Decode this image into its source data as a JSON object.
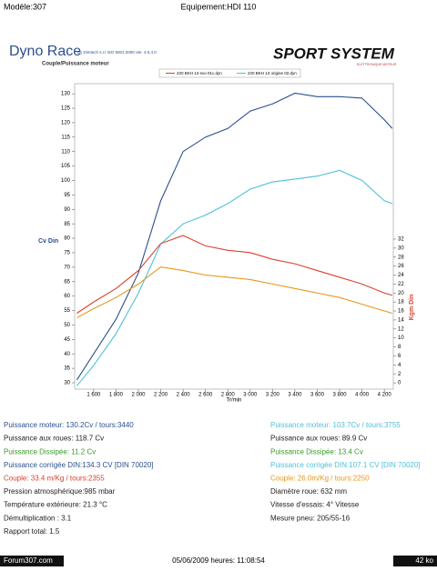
{
  "header": {
    "model": "Modèle:307",
    "equipment": "Equipement:HDI 110"
  },
  "brand": {
    "title": "Dyno Race",
    "by": "By Dimtech s.r.l  ISO 9001:2000  Ver. 4.0.4.0",
    "logo": "SPORT SYSTEM",
    "logo_sub": "ELETTRONIQUE MOTEUR"
  },
  "chart_data": {
    "type": "line",
    "subtitle": "Couple/Puissance moteur",
    "y_label": "Cv Din",
    "y2_label": "Kgm Din",
    "x_label": "Tr/min",
    "legend": [
      {
        "label": "220 BKH 13 evo 01c.dyn",
        "color": "#d9412e"
      },
      {
        "label": "220 BKH 13 origine 02.dyn",
        "color": "#4fc0d8"
      }
    ],
    "x": [
      1450,
      1600,
      1800,
      2000,
      2200,
      2400,
      2600,
      2800,
      3000,
      3200,
      3400,
      3600,
      3800,
      4000,
      4200,
      4270
    ],
    "series": [
      {
        "color": "#2b4f8e",
        "values": [
          31,
          40,
          52,
          68,
          93,
          110,
          115,
          118,
          124,
          126.5,
          130.2,
          129,
          129,
          128.5,
          121,
          118
        ]
      },
      {
        "color": "#4fc0d8",
        "values": [
          29,
          36,
          47,
          61,
          78,
          85,
          88,
          92,
          97,
          99.5,
          100.5,
          101.5,
          103.5,
          100,
          93,
          92
        ]
      },
      {
        "color": "#d9412e",
        "axis": "y2",
        "values": [
          15.5,
          18,
          21,
          25,
          31,
          32.8,
          30.5,
          29.5,
          29,
          27.5,
          26.5,
          25,
          23.5,
          22,
          20,
          19.5
        ]
      },
      {
        "color": "#e8961c",
        "axis": "y2",
        "values": [
          14.5,
          16.5,
          19,
          22,
          25.8,
          25,
          24,
          23.5,
          23,
          22,
          21,
          20,
          19,
          17.5,
          16,
          15.5
        ]
      }
    ],
    "xlim": [
      1430,
      4280
    ],
    "xticks": [
      {
        "value": 1600,
        "label": "1 600"
      },
      {
        "value": 1800,
        "label": "1 800"
      },
      {
        "value": 2000,
        "label": "2 000"
      },
      {
        "value": 2200,
        "label": "2 200"
      },
      {
        "value": 2400,
        "label": "2 400"
      },
      {
        "value": 2600,
        "label": "2 600"
      },
      {
        "value": 2800,
        "label": "2 800"
      },
      {
        "value": 3000,
        "label": "3 000"
      },
      {
        "value": 3200,
        "label": "3 200"
      },
      {
        "value": 3400,
        "label": "3 400"
      },
      {
        "value": 3600,
        "label": "3 600"
      },
      {
        "value": 3800,
        "label": "3 800"
      },
      {
        "value": 4000,
        "label": "4 000"
      },
      {
        "value": 4200,
        "label": "4 200"
      }
    ],
    "ylim": [
      27.8,
      133.5
    ],
    "yticks": [
      30,
      35,
      40,
      45,
      50,
      55,
      60,
      65,
      70,
      75,
      80,
      85,
      90,
      95,
      100,
      105,
      110,
      115,
      120,
      125,
      130
    ],
    "y2lim": [
      -1.4,
      66.6
    ],
    "y2ticks": [
      0,
      2,
      4,
      6,
      8,
      10,
      12,
      14,
      16,
      18,
      20,
      22,
      24,
      26,
      28,
      30,
      32
    ]
  },
  "results_left": {
    "lines": [
      "Puissance moteur: 130.2Cv / tours:3440",
      "Puissance aux roues: 118.7 Cv",
      "Puissance Dissipée: 11.2 Cv",
      "Puissance corrigée DIN:134.3 CV  [DIN 70020]",
      "Couple: 33.4 m/Kg / tours:2355",
      "Pression atmosphérique:985 mbar",
      "Température extérieure: 21.3 °C",
      "Démultiplication : 3.1",
      "Rapport total: 1.5"
    ],
    "colors": [
      "#2b4f8e",
      "#222",
      "#3a9a2a",
      "#2b4f8e",
      "#d9412e",
      "#222",
      "#222",
      "#222",
      "#222"
    ]
  },
  "results_right": {
    "lines": [
      "Puissance moteur: 103.7Cv / tours:3755",
      "Puissance aux roues: 89.9 Cv",
      "Puissance Dissipée: 13.4 Cv",
      "Puissance corrigée DIN:107.1 CV  [DIN 70020]",
      "Couple: 26.0m/Kg / tours:2250",
      "Diamètre roue: 632 mm",
      "Vitesse d'essais: 4° Vitesse",
      "Mesure pneu: 205/55-16"
    ],
    "colors": [
      "#4fc0d8",
      "#222",
      "#3a9a2a",
      "#4fc0d8",
      "#e8961c",
      "#222",
      "#222",
      "#222"
    ]
  },
  "footer": {
    "date": "05/06/2009 heures: 11:08:54",
    "site": "Forum307.com",
    "size": "42 ko"
  }
}
